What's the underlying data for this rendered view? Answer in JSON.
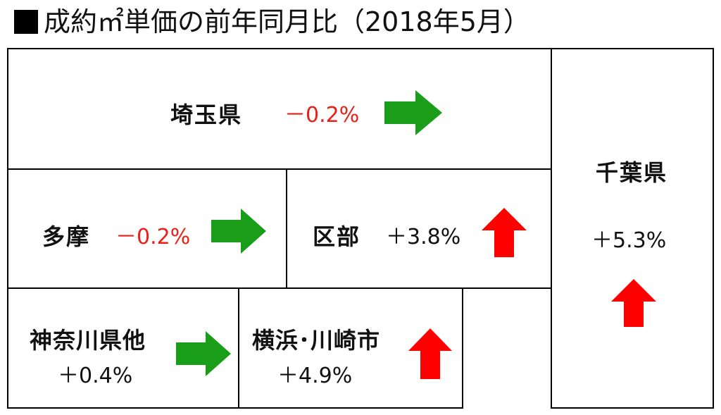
{
  "title": "成約㎡単価の前年同月比（2018年5月）",
  "colors": {
    "flat_arrow": "#1a9e1a",
    "up_arrow": "#ff0000",
    "negative_text": "#e8201a"
  },
  "regions": {
    "saitama": {
      "name": "埼玉県",
      "change": "－0.2%",
      "trend": "flat"
    },
    "tama": {
      "name": "多摩",
      "change": "－0.2%",
      "trend": "flat"
    },
    "kubu": {
      "name": "区部",
      "change": "＋3.8%",
      "trend": "up"
    },
    "kanagawa": {
      "name": "神奈川県他",
      "change": "＋0.4%",
      "trend": "flat"
    },
    "yokohama": {
      "name": "横浜･川崎市",
      "change": "＋4.9%",
      "trend": "up"
    },
    "chiba": {
      "name": "千葉県",
      "change": "＋5.3%",
      "trend": "up"
    }
  }
}
